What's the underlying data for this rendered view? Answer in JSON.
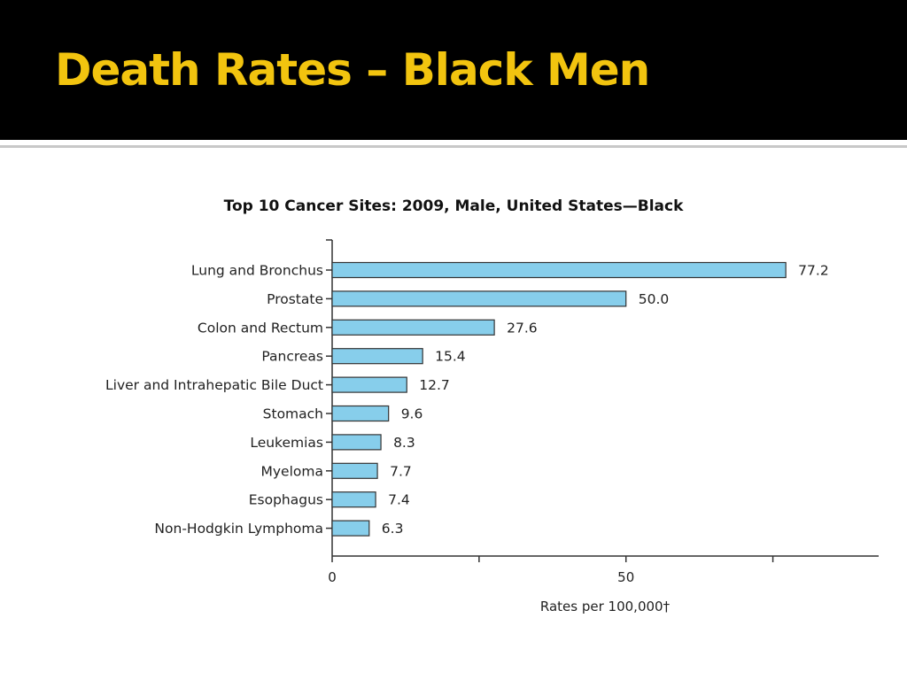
{
  "slide": {
    "title": "Death Rates – Black Men",
    "accent_color": "#f2c40f",
    "header_bg": "#000000"
  },
  "chart_data": {
    "type": "bar",
    "orientation": "horizontal",
    "title": "Top 10 Cancer Sites: 2009, Male, United States—Black",
    "xlabel": "Rates per 100,000†",
    "ylabel": "",
    "categories": [
      "Lung and Bronchus",
      "Prostate",
      "Colon and Rectum",
      "Pancreas",
      "Liver and Intrahepatic Bile Duct",
      "Stomach",
      "Leukemias",
      "Myeloma",
      "Esophagus",
      "Non-Hodgkin Lymphoma"
    ],
    "values": [
      77.2,
      50.0,
      27.6,
      15.4,
      12.7,
      9.6,
      8.3,
      7.7,
      7.4,
      6.3
    ],
    "value_labels": [
      "77.2",
      "50.0",
      "27.6",
      "15.4",
      "12.7",
      "9.6",
      "8.3",
      "7.7",
      "7.4",
      "6.3"
    ],
    "xlim": [
      0,
      93
    ],
    "x_ticks": [
      0,
      25,
      50,
      75
    ],
    "x_tick_labels": [
      "0",
      "",
      "50",
      ""
    ],
    "bar_color": "#87ceeb",
    "bar_stroke": "#333333",
    "grid": false,
    "legend": "none"
  }
}
